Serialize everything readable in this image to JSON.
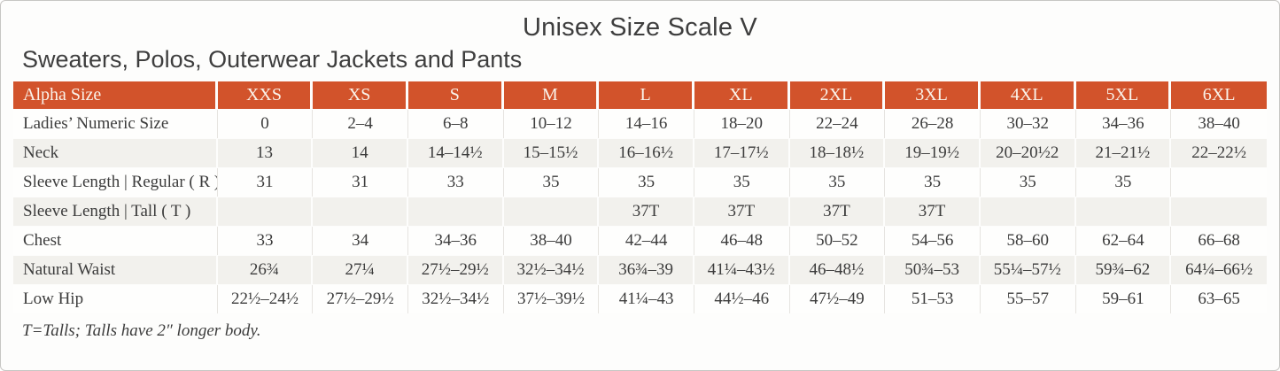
{
  "title": "Unisex Size Scale V",
  "subtitle": "Sweaters, Polos, Outerwear Jackets and Pants",
  "footnote": "T=Talls; Talls have 2″ longer body.",
  "colors": {
    "header_bg": "#d2532b",
    "header_text": "#faf3ea",
    "stripe_bg": "#f2f1ed",
    "body_text": "#3c3c3c",
    "card_border": "#c7c6c3"
  },
  "table": {
    "header": [
      "Alpha Size",
      "XXS",
      "XS",
      "S",
      "M",
      "L",
      "XL",
      "2XL",
      "3XL",
      "4XL",
      "5XL",
      "6XL"
    ],
    "rows": [
      {
        "label": "Ladies’ Numeric Size",
        "values": [
          "0",
          "2–4",
          "6–8",
          "10–12",
          "14–16",
          "18–20",
          "22–24",
          "26–28",
          "30–32",
          "34–36",
          "38–40"
        ]
      },
      {
        "label": "Neck",
        "values": [
          "13",
          "14",
          "14–14½",
          "15–15½",
          "16–16½",
          "17–17½",
          "18–18½",
          "19–19½",
          "20–20½2",
          "21–21½",
          "22–22½"
        ]
      },
      {
        "label": "Sleeve Length | Regular ( R )",
        "values": [
          "31",
          "31",
          "33",
          "35",
          "35",
          "35",
          "35",
          "35",
          "35",
          "35",
          ""
        ]
      },
      {
        "label": "Sleeve Length | Tall ( T )",
        "values": [
          "",
          "",
          "",
          "",
          "37T",
          "37T",
          "37T",
          "37T",
          "",
          "",
          ""
        ]
      },
      {
        "label": "Chest",
        "values": [
          "33",
          "34",
          "34–36",
          "38–40",
          "42–44",
          "46–48",
          "50–52",
          "54–56",
          "58–60",
          "62–64",
          "66–68"
        ]
      },
      {
        "label": "Natural Waist",
        "values": [
          "26¾",
          "27¼",
          "27½–29½",
          "32½–34½",
          "36¾–39",
          "41¼–43½",
          "46–48½",
          "50¾–53",
          "55¼–57½",
          "59¾–62",
          "64¼–66½"
        ]
      },
      {
        "label": "Low Hip",
        "values": [
          "22½–24½",
          "27½–29½",
          "32½–34½",
          "37½–39½",
          "41¼–43",
          "44½–46",
          "47½–49",
          "51–53",
          "55–57",
          "59–61",
          "63–65"
        ]
      }
    ]
  }
}
